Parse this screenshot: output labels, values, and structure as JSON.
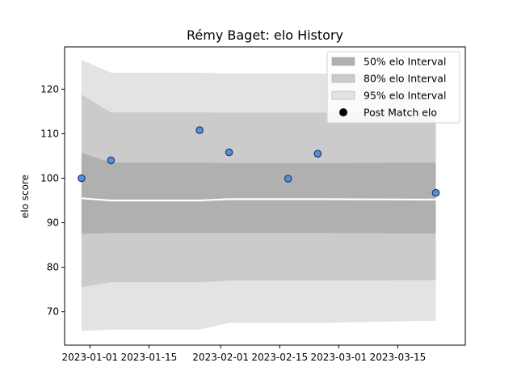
{
  "chart_data": {
    "type": "line",
    "title": "Rémy Baget: elo History",
    "xlabel": "",
    "ylabel": "elo score",
    "x_ticks": [
      "2023-01-01",
      "2023-01-15",
      "2023-02-01",
      "2023-02-15",
      "2023-03-01",
      "2023-03-15"
    ],
    "y_ticks": [
      70,
      80,
      90,
      100,
      110,
      120
    ],
    "xlim": [
      "2022-12-26",
      "2023-03-31"
    ],
    "ylim": [
      62.5,
      129.5
    ],
    "grid": false,
    "legend_position": "top-right",
    "legend": [
      {
        "label": "50% elo Interval",
        "kind": "band50"
      },
      {
        "label": "80% elo Interval",
        "kind": "band80"
      },
      {
        "label": "95% elo Interval",
        "kind": "band95"
      },
      {
        "label": "Post Match elo",
        "kind": "marker"
      }
    ],
    "colors": {
      "band50": "#b0b0b0",
      "band80": "#cbcbcb",
      "band95": "#e3e3e3",
      "mean_line": "#ffffff",
      "marker_fill": "#5a8ed6",
      "marker_edge": "#1a3a6e",
      "legend_marker": "#000000"
    },
    "series": [
      {
        "name": "Post Match elo",
        "points": [
          {
            "x": "2022-12-30",
            "y": 100.0
          },
          {
            "x": "2023-01-06",
            "y": 104.0
          },
          {
            "x": "2023-01-27",
            "y": 110.8
          },
          {
            "x": "2023-02-03",
            "y": 105.8
          },
          {
            "x": "2023-02-17",
            "y": 99.9
          },
          {
            "x": "2023-02-24",
            "y": 105.5
          },
          {
            "x": "2023-03-24",
            "y": 96.7
          }
        ]
      }
    ],
    "bands": [
      {
        "x": "2022-12-30",
        "mean": 95.5,
        "lo50": 87.5,
        "hi50": 105.7,
        "lo80": 75.5,
        "hi80": 118.8,
        "lo95": 65.7,
        "hi95": 126.6
      },
      {
        "x": "2023-01-06",
        "mean": 95.0,
        "lo50": 87.7,
        "hi50": 103.5,
        "lo80": 76.6,
        "hi80": 114.8,
        "lo95": 66.0,
        "hi95": 123.7
      },
      {
        "x": "2023-01-27",
        "mean": 95.0,
        "lo50": 87.7,
        "hi50": 103.5,
        "lo80": 76.6,
        "hi80": 114.8,
        "lo95": 66.0,
        "hi95": 123.7
      },
      {
        "x": "2023-02-03",
        "mean": 95.3,
        "lo50": 87.7,
        "hi50": 103.4,
        "lo80": 77.0,
        "hi80": 114.7,
        "lo95": 67.5,
        "hi95": 123.5
      },
      {
        "x": "2023-02-17",
        "mean": 95.3,
        "lo50": 87.7,
        "hi50": 103.4,
        "lo80": 77.0,
        "hi80": 114.7,
        "lo95": 67.5,
        "hi95": 123.5
      },
      {
        "x": "2023-02-24",
        "mean": 95.3,
        "lo50": 87.7,
        "hi50": 103.4,
        "lo80": 77.0,
        "hi80": 114.7,
        "lo95": 67.5,
        "hi95": 123.5
      },
      {
        "x": "2023-03-24",
        "mean": 95.2,
        "lo50": 87.6,
        "hi50": 103.5,
        "lo80": 77.1,
        "hi80": 114.8,
        "lo95": 68.0,
        "hi95": 123.3
      }
    ]
  }
}
